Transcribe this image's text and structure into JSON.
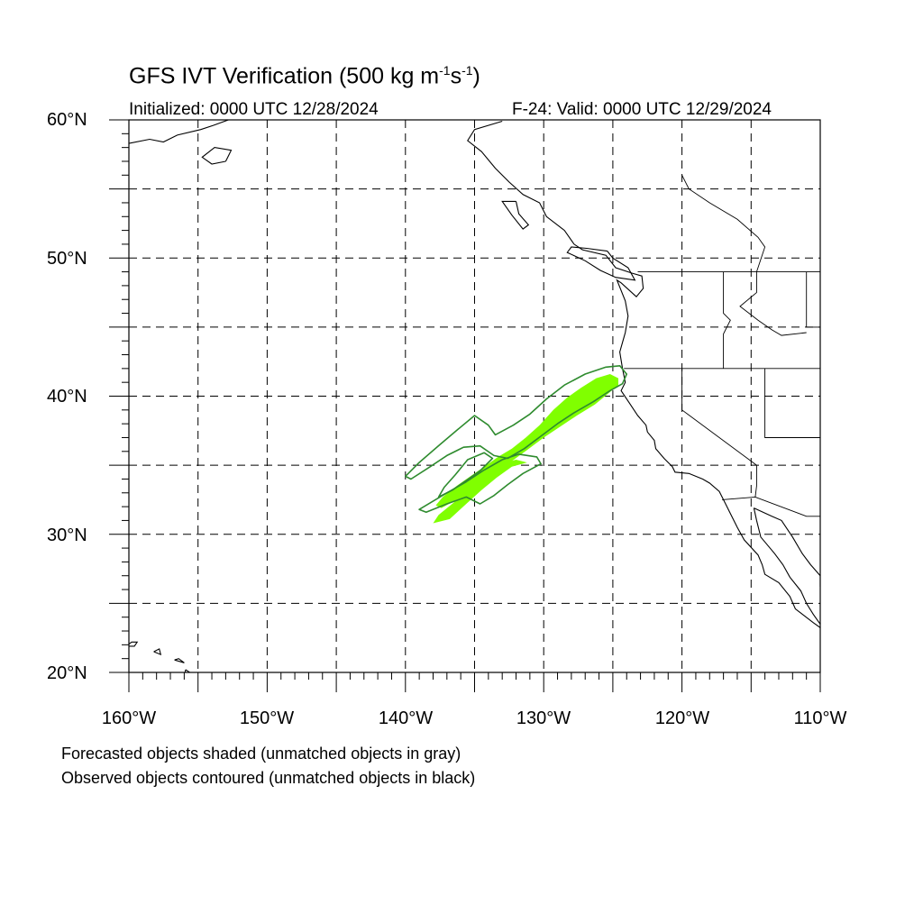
{
  "title": {
    "main": "GFS IVT Verification (500 kg m",
    "exp1": "-1",
    "mid": "s",
    "exp2": "-1",
    "end": ")"
  },
  "subtitle": {
    "initialized": "Initialized: 0000 UTC 12/28/2024",
    "valid": "F-24: Valid: 0000 UTC 12/29/2024"
  },
  "map": {
    "lon_range": [
      -160,
      -110
    ],
    "lat_range": [
      20,
      60
    ],
    "grid_interval_deg": 5,
    "grid_style": "dashed",
    "lat_labels": [
      "60°N",
      "50°N",
      "40°N",
      "30°N",
      "20°N"
    ],
    "lon_labels": [
      "160°W",
      "150°W",
      "140°W",
      "130°W",
      "120°W",
      "110°W"
    ],
    "colors": {
      "forecast_fill": "#80ff00",
      "observed_contour": "#2e8b2e",
      "coastline": "#000000",
      "grid": "#000000"
    },
    "forecast_objects": [
      {
        "name": "main-filament",
        "lonlat": [
          [
            -124.6,
            41.3
          ],
          [
            -125.2,
            41.6
          ],
          [
            -126.2,
            41.3
          ],
          [
            -127.3,
            40.6
          ],
          [
            -128.3,
            39.9
          ],
          [
            -129.3,
            39.0
          ],
          [
            -130.3,
            37.9
          ],
          [
            -131.3,
            37.0
          ],
          [
            -132.3,
            36.2
          ],
          [
            -133.3,
            35.6
          ],
          [
            -134.3,
            34.9
          ],
          [
            -135.3,
            34.2
          ],
          [
            -136.3,
            33.5
          ],
          [
            -137.3,
            32.7
          ],
          [
            -137.8,
            32.1
          ],
          [
            -137.4,
            31.9
          ],
          [
            -136.3,
            32.5
          ],
          [
            -135.3,
            33.2
          ],
          [
            -134.3,
            33.9
          ],
          [
            -133.3,
            34.6
          ],
          [
            -132.3,
            35.3
          ],
          [
            -131.2,
            36.1
          ],
          [
            -130.0,
            37.0
          ],
          [
            -128.8,
            37.8
          ],
          [
            -127.6,
            38.6
          ],
          [
            -126.3,
            39.4
          ],
          [
            -125.2,
            40.3
          ],
          [
            -124.6,
            40.8
          ]
        ]
      },
      {
        "name": "southern-filament",
        "lonlat": [
          [
            -131.2,
            35.2
          ],
          [
            -132.3,
            34.9
          ],
          [
            -133.4,
            34.1
          ],
          [
            -134.5,
            33.2
          ],
          [
            -135.6,
            32.2
          ],
          [
            -136.8,
            31.1
          ],
          [
            -138.0,
            30.8
          ],
          [
            -137.6,
            31.4
          ],
          [
            -136.5,
            32.3
          ],
          [
            -135.4,
            33.4
          ],
          [
            -134.3,
            34.4
          ],
          [
            -133.1,
            35.1
          ],
          [
            -132.0,
            35.4
          ]
        ]
      }
    ],
    "observed_objects": [
      {
        "name": "main-contour",
        "lonlat": [
          [
            -124.0,
            41.6
          ],
          [
            -124.5,
            42.2
          ],
          [
            -125.5,
            42.1
          ],
          [
            -127.0,
            41.6
          ],
          [
            -128.5,
            40.8
          ],
          [
            -129.8,
            39.8
          ],
          [
            -131.0,
            38.7
          ],
          [
            -132.2,
            37.9
          ],
          [
            -133.5,
            37.2
          ],
          [
            -134.0,
            37.9
          ],
          [
            -135.0,
            38.6
          ],
          [
            -136.2,
            37.6
          ],
          [
            -137.5,
            36.5
          ],
          [
            -139.0,
            35.2
          ],
          [
            -140.0,
            34.2
          ],
          [
            -139.6,
            34.0
          ],
          [
            -138.2,
            34.9
          ],
          [
            -137.0,
            35.7
          ],
          [
            -135.8,
            36.3
          ],
          [
            -134.6,
            36.4
          ],
          [
            -133.6,
            35.7
          ],
          [
            -132.6,
            35.5
          ],
          [
            -131.4,
            36.2
          ],
          [
            -130.2,
            37.1
          ],
          [
            -129.0,
            38.0
          ],
          [
            -127.8,
            38.8
          ],
          [
            -126.4,
            39.6
          ],
          [
            -125.2,
            40.4
          ],
          [
            -124.3,
            40.9
          ]
        ]
      },
      {
        "name": "inner-contour",
        "lonlat": [
          [
            -135.5,
            35.4
          ],
          [
            -134.3,
            35.9
          ],
          [
            -133.7,
            35.5
          ],
          [
            -134.6,
            34.6
          ],
          [
            -135.6,
            33.9
          ],
          [
            -136.6,
            33.2
          ],
          [
            -137.6,
            32.7
          ],
          [
            -137.2,
            33.4
          ],
          [
            -136.4,
            34.3
          ]
        ]
      },
      {
        "name": "southern-contour",
        "lonlat": [
          [
            -130.2,
            35.1
          ],
          [
            -130.5,
            35.6
          ],
          [
            -131.8,
            35.8
          ],
          [
            -133.0,
            35.4
          ],
          [
            -134.4,
            34.6
          ],
          [
            -135.6,
            33.8
          ],
          [
            -137.0,
            33.0
          ],
          [
            -139.0,
            31.8
          ],
          [
            -138.5,
            31.6
          ],
          [
            -137.0,
            32.2
          ],
          [
            -135.6,
            32.7
          ],
          [
            -134.6,
            32.2
          ],
          [
            -133.6,
            32.8
          ],
          [
            -132.6,
            33.6
          ],
          [
            -131.5,
            34.4
          ]
        ]
      }
    ]
  },
  "legend": {
    "line1": "Forecasted objects shaded (unmatched objects in gray)",
    "line2": "Observed objects contoured (unmatched objects in black)"
  }
}
